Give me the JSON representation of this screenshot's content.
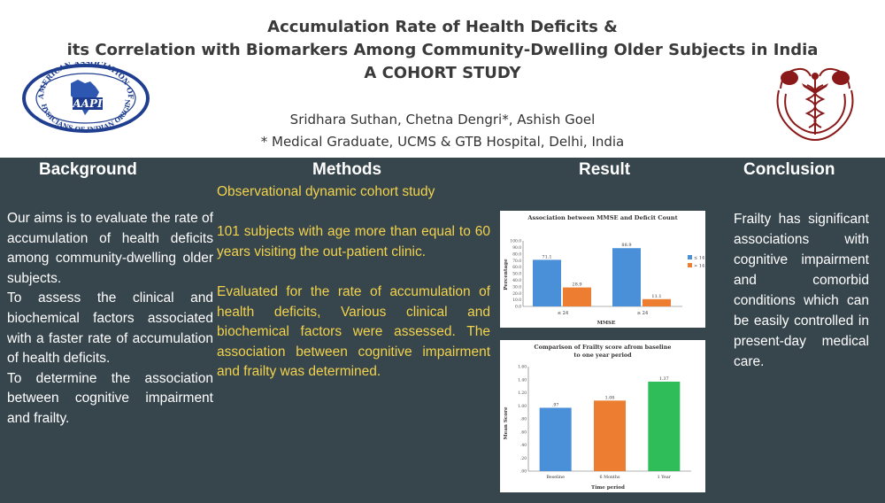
{
  "header": {
    "title_lines": [
      "Accumulation Rate of Health Deficits &",
      "its Correlation with Biomarkers Among Community-Dwelling Older Subjects in India",
      "A COHORT STUDY"
    ],
    "authors": "Sridhara Suthan, Chetna Dengri*, Ashish Goel",
    "affiliation": "* Medical Graduate, UCMS & GTB Hospital, Delhi, India",
    "logo_left": {
      "ring_text_top": "AMERICAN ASSOCIATION OF",
      "ring_text_bottom": "PHYSICIANS OF INDIAN ORIGIN",
      "center_text": "AAPI",
      "colors": {
        "ring": "#1f3e8f",
        "inner": "#2d57b0"
      }
    },
    "logo_right": {
      "icon": "caduceus-elephants-emblem",
      "color": "#8a1a1a"
    }
  },
  "sections": {
    "background": {
      "heading": "Background",
      "paragraphs": [
        "Our aims is to evaluate the rate of accumulation of health deficits among community-dwelling older subjects.",
        "To assess the clinical and biochemical factors associated with a faster rate of accumulation of health deficits.",
        "To determine the association between cognitive impairment and frailty."
      ]
    },
    "methods": {
      "heading": "Methods",
      "paragraphs": [
        "Observational dynamic cohort study",
        "101 subjects with age more than equal to 60 years visiting the out-patient clinic.",
        "Evaluated for the rate of accumulation of health deficits, Various clinical and biochemical factors were assessed. The association between cognitive impairment and frailty was determined."
      ]
    },
    "result": {
      "heading": "Result"
    },
    "conclusion": {
      "heading": "Conclusion",
      "text": "Frailty has significant associations with cognitive impairment and comorbid conditions which can be easily controlled in present-day medical care."
    }
  },
  "colors": {
    "panel_bg": "#37454d",
    "methods_text": "#f2d34b",
    "heading_text": "#ffffff",
    "series_blue": "#4a90d9",
    "series_orange": "#ed7d31",
    "bar_green": "#2ebd59"
  },
  "chart_data": [
    {
      "type": "bar",
      "title": "Association between MMSE and Deficit Count",
      "xlabel": "MMSE",
      "ylabel": "Percentage",
      "categories": [
        "≤ 24",
        "≥ 24"
      ],
      "series": [
        {
          "name": "≤ 14",
          "values": [
            71.1,
            88.9
          ]
        },
        {
          "name": "> 14",
          "values": [
            28.9,
            11.1
          ]
        }
      ],
      "data_labels": [
        [
          "71.1",
          "28.9"
        ],
        [
          "88.9",
          "11.1"
        ]
      ],
      "ylim": [
        0,
        100
      ],
      "yticks": [
        "0.0",
        "10.0",
        "20.0",
        "30.0",
        "40.0",
        "50.0",
        "60.0",
        "70.0",
        "80.0",
        "90.0",
        "100.0"
      ],
      "legend_position": "right",
      "grid": false
    },
    {
      "type": "bar",
      "title": "Comparison of Frailty score afrom baseline to one year period",
      "xlabel": "Time period",
      "ylabel": "Mean Score",
      "categories": [
        "Beseline",
        "6 Months",
        "1 Year"
      ],
      "values": [
        0.97,
        1.08,
        1.37
      ],
      "data_labels": [
        ".97",
        "1.08",
        "1.37"
      ],
      "ylim": [
        0,
        1.6
      ],
      "yticks": [
        ".00",
        ".20",
        ".40",
        ".60",
        ".80",
        "1.00",
        "1.20",
        "1.40",
        "1.60"
      ],
      "grid": false
    }
  ]
}
